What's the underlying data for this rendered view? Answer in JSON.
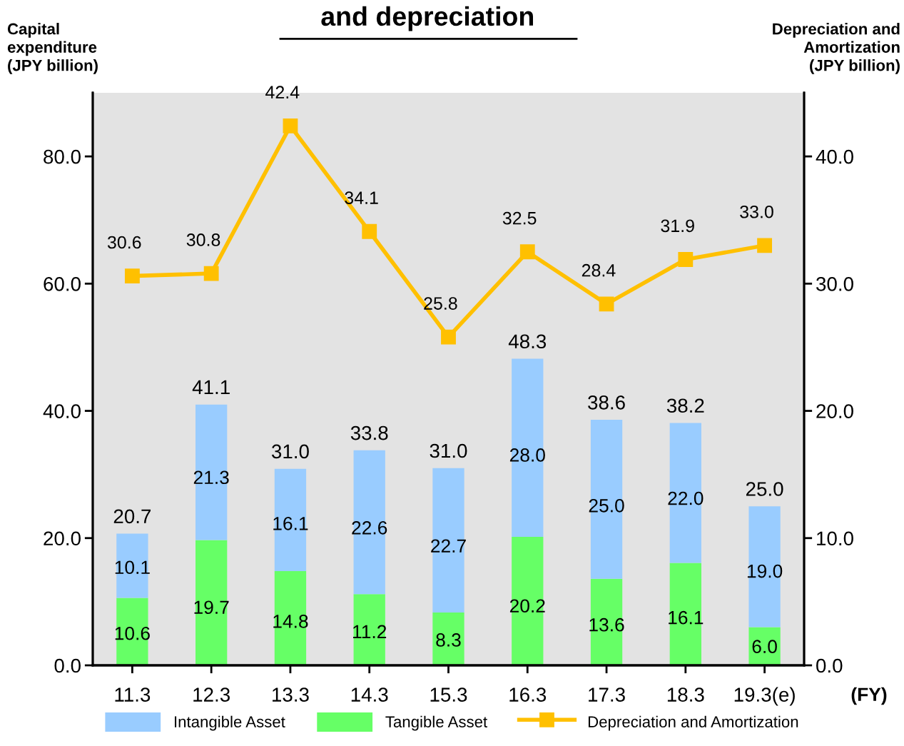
{
  "chart_data": {
    "type": "bar",
    "title": "and depreciation",
    "ylabel": "Capital\nexpenditure\n(JPY billion)",
    "y2label": "Depreciation and\nAmortization\n(JPY billion)",
    "xlabel": "(FY)",
    "categories": [
      "11.3",
      "12.3",
      "13.3",
      "14.3",
      "15.3",
      "16.3",
      "17.3",
      "18.3",
      "19.3(e)"
    ],
    "stacked": true,
    "legend": "bottom",
    "grid": false,
    "marker": "square",
    "series": [
      {
        "name": "Tangible Asset",
        "color": "#66ff66",
        "values": [
          10.6,
          19.7,
          14.8,
          11.2,
          8.3,
          20.2,
          13.6,
          16.1,
          6.0
        ],
        "value_labels": [
          "10.6",
          "19.7",
          "14.8",
          "11.2",
          "8.3",
          "20.2",
          "13.6",
          "16.1",
          "6.0"
        ]
      },
      {
        "name": "Intangible Asset",
        "color": "#99ccff",
        "values": [
          10.1,
          21.3,
          16.1,
          22.6,
          22.7,
          28.0,
          25.0,
          22.0,
          19.0
        ],
        "value_labels": [
          "10.1",
          "21.3",
          "16.1",
          "22.6",
          "22.7",
          "28.0",
          "25.0",
          "22.0",
          "19.0"
        ]
      },
      {
        "name": "Depreciation and Amortization",
        "color": "#ffc000",
        "type": "line",
        "axis": "y2",
        "values": [
          30.6,
          30.8,
          42.4,
          34.1,
          25.8,
          32.5,
          28.4,
          31.9,
          33.0
        ],
        "value_labels": [
          "30.6",
          "30.8",
          "42.4",
          "34.1",
          "25.8",
          "32.5",
          "28.4",
          "31.9",
          "33.0"
        ]
      }
    ],
    "totals": [
      "20.7",
      "41.1",
      "31.0",
      "33.8",
      "31.0",
      "48.3",
      "38.6",
      "38.2",
      "25.0"
    ],
    "ylim": [
      0,
      90
    ],
    "yticks": [
      {
        "value": 0,
        "label": "0.0"
      },
      {
        "value": 20,
        "label": "20.0"
      },
      {
        "value": 40,
        "label": "40.0"
      },
      {
        "value": 60,
        "label": "60.0"
      },
      {
        "value": 80,
        "label": "80.0"
      }
    ],
    "y2lim": [
      0,
      45
    ],
    "y2ticks": [
      {
        "value": 0,
        "label": "0.0"
      },
      {
        "value": 10,
        "label": "10.0"
      },
      {
        "value": 20,
        "label": "20.0"
      },
      {
        "value": 30,
        "label": "30.0"
      },
      {
        "value": 40,
        "label": "40.0"
      }
    ]
  }
}
